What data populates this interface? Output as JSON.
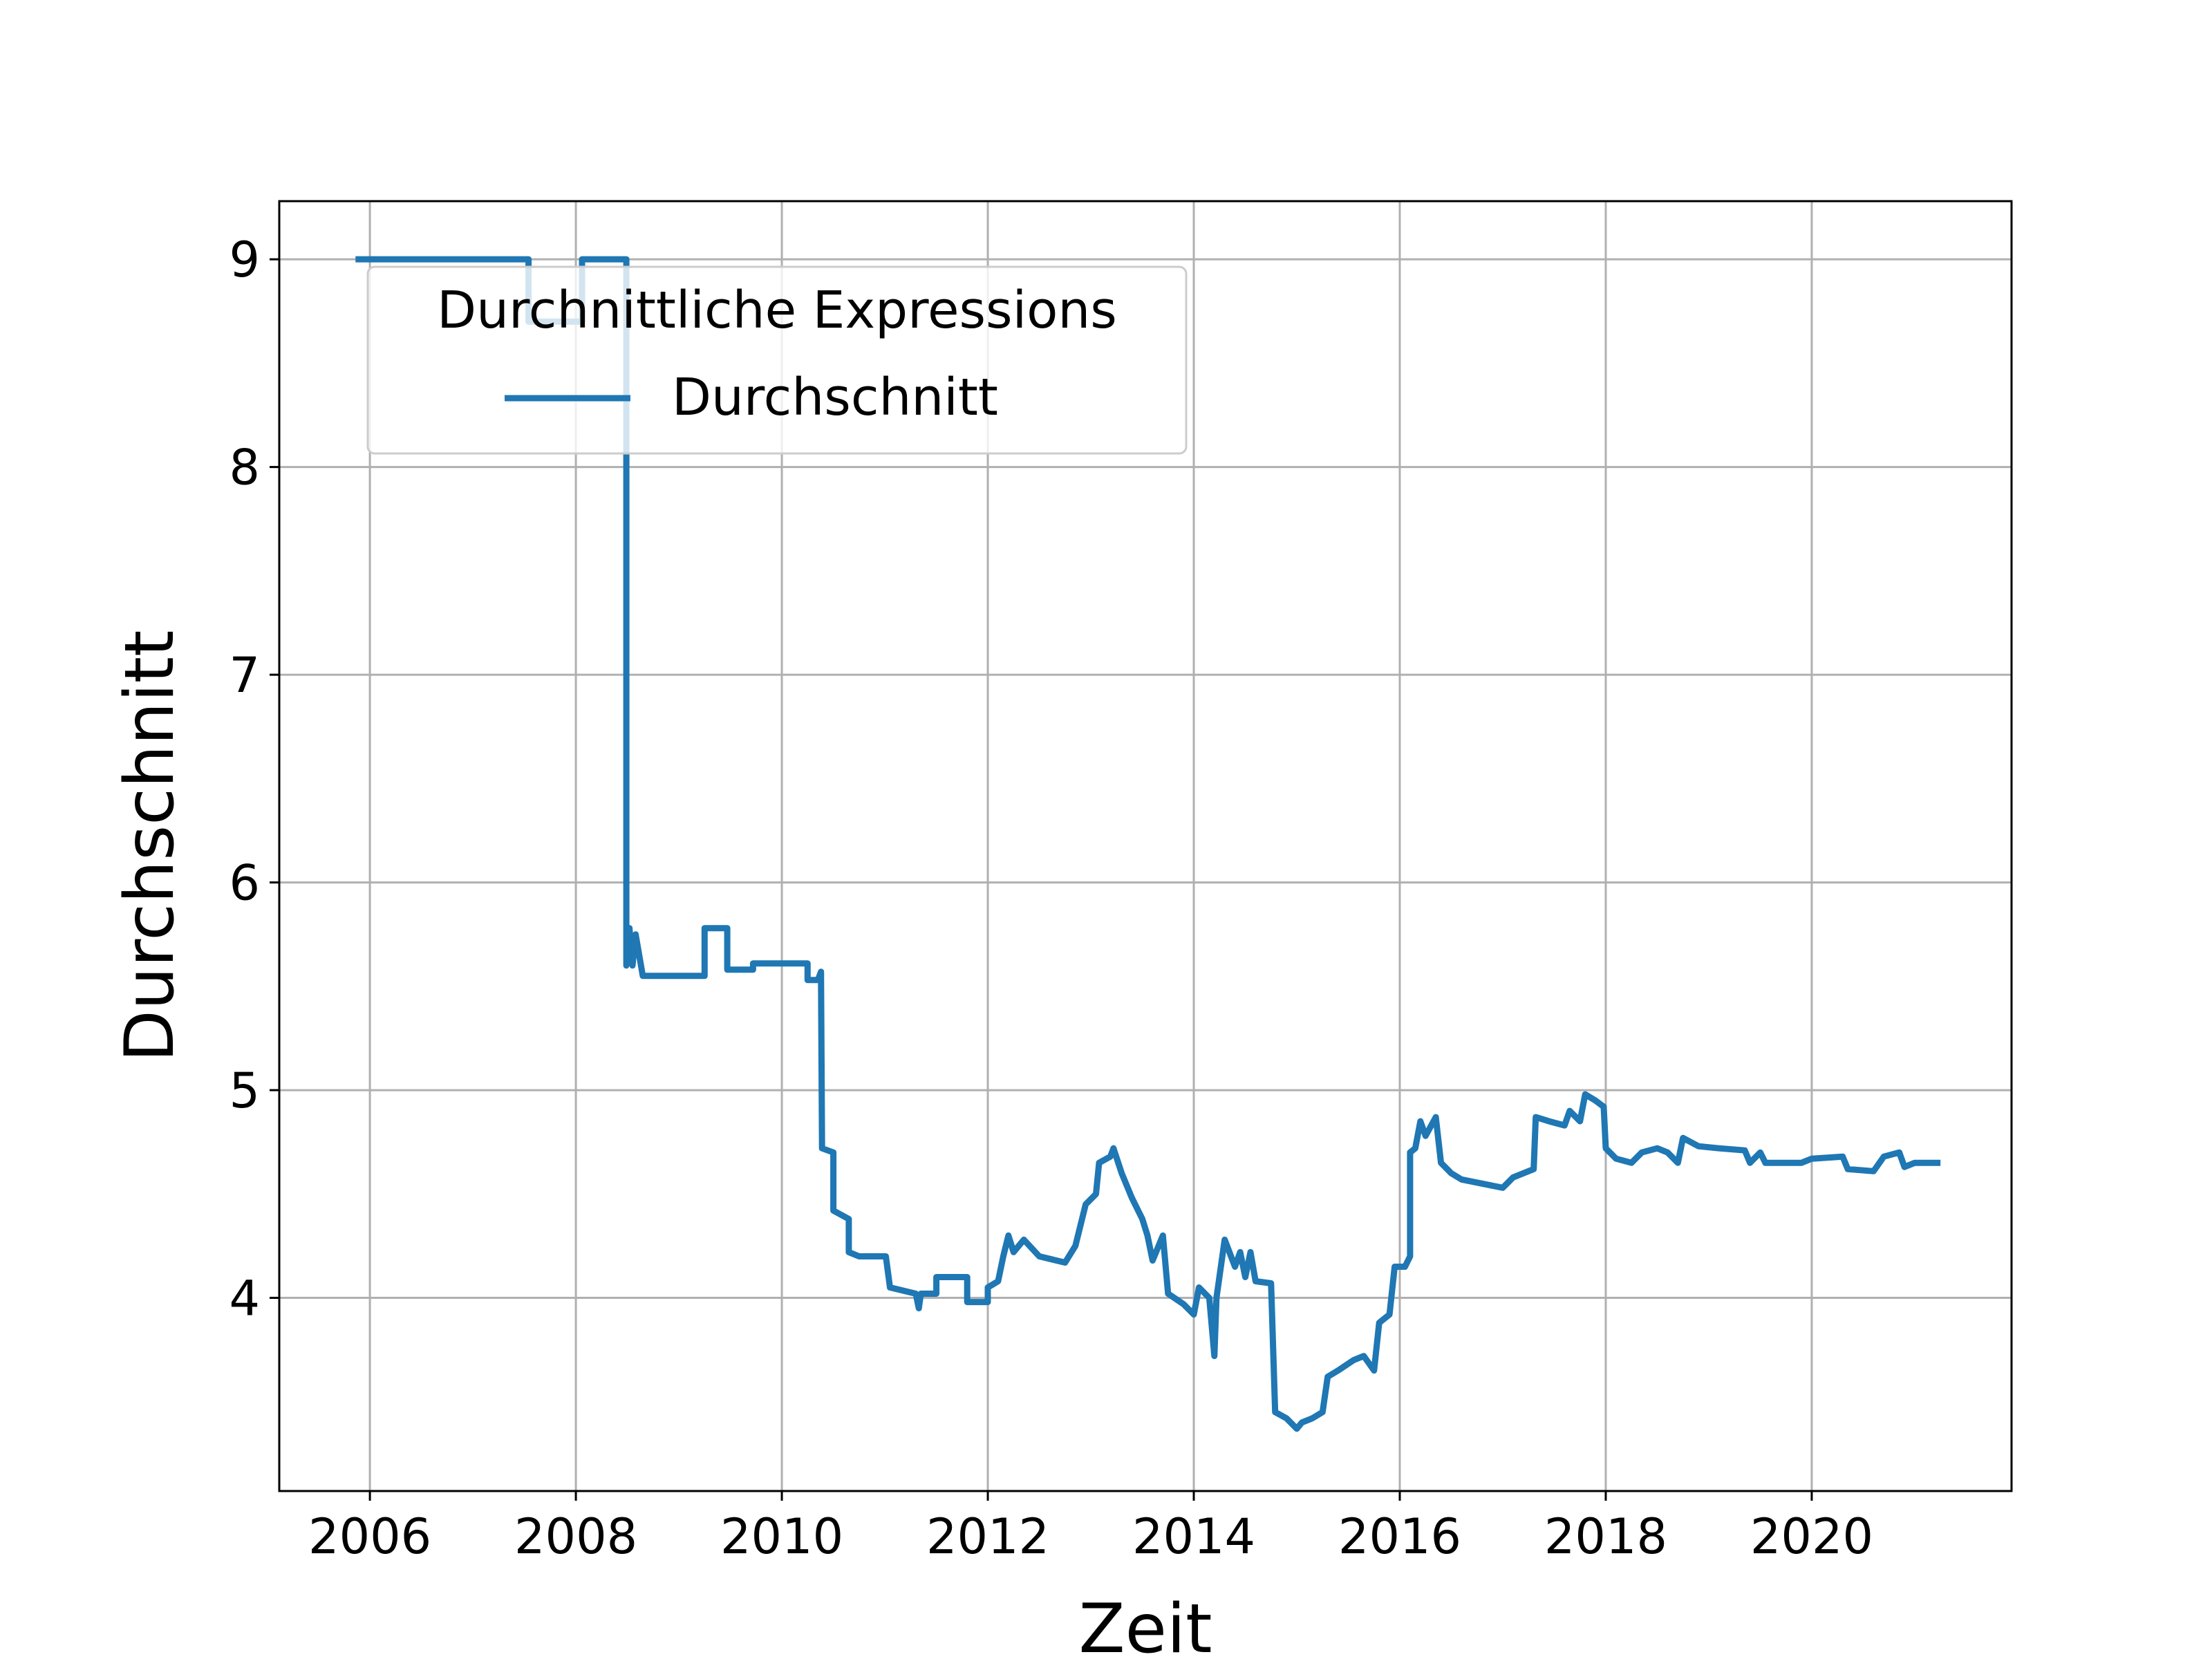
{
  "chart_data": {
    "type": "line",
    "x_label": "Zeit",
    "y_label": "Durchschnitt",
    "legend_title": "Durchnittliche Expressions",
    "legend_loc": "upper left",
    "grid": true,
    "xlim": [
      2005.12,
      2021.94
    ],
    "ylim": [
      3.07,
      9.28
    ],
    "xticks": [
      2006,
      2008,
      2010,
      2012,
      2014,
      2016,
      2018,
      2020
    ],
    "yticks": [
      4,
      5,
      6,
      7,
      8,
      9
    ],
    "x": [
      2005.86,
      2007.54,
      2007.54,
      2008.06,
      2008.06,
      2008.49,
      2008.49,
      2008.52,
      2008.55,
      2008.58,
      2008.65,
      2008.8,
      2009.25,
      2009.25,
      2009.47,
      2009.47,
      2009.72,
      2009.72,
      2010.25,
      2010.25,
      2010.35,
      2010.38,
      2010.39,
      2010.5,
      2010.5,
      2010.65,
      2010.65,
      2010.75,
      2011.01,
      2011.05,
      2011.3,
      2011.33,
      2011.35,
      2011.5,
      2011.5,
      2011.8,
      2011.8,
      2012.0,
      2012.0,
      2012.1,
      2012.15,
      2012.2,
      2012.25,
      2012.35,
      2012.5,
      2012.75,
      2012.85,
      2012.95,
      2013.05,
      2013.08,
      2013.19,
      2013.22,
      2013.3,
      2013.4,
      2013.5,
      2013.55,
      2013.6,
      2013.7,
      2013.75,
      2013.9,
      2014.0,
      2014.05,
      2014.15,
      2014.2,
      2014.22,
      2014.3,
      2014.4,
      2014.45,
      2014.5,
      2014.55,
      2014.6,
      2014.75,
      2014.79,
      2014.9,
      2015.0,
      2015.05,
      2015.15,
      2015.25,
      2015.3,
      2015.4,
      2015.55,
      2015.65,
      2015.75,
      2015.8,
      2015.9,
      2015.95,
      2016.05,
      2016.1,
      2016.1,
      2016.15,
      2016.2,
      2016.25,
      2016.35,
      2016.4,
      2016.5,
      2016.6,
      2016.8,
      2017.0,
      2017.1,
      2017.3,
      2017.32,
      2017.45,
      2017.6,
      2017.65,
      2017.75,
      2017.8,
      2017.9,
      2017.98,
      2018.0,
      2018.1,
      2018.25,
      2018.35,
      2018.5,
      2018.6,
      2018.7,
      2018.75,
      2018.9,
      2019.1,
      2019.35,
      2019.4,
      2019.5,
      2019.55,
      2019.9,
      2020.0,
      2020.3,
      2020.35,
      2020.6,
      2020.7,
      2020.85,
      2020.9,
      2021.0,
      2021.25
    ],
    "series": [
      {
        "name": "Durchschnitt",
        "color": "#1f77b4",
        "values": [
          9,
          9,
          8.7,
          8.7,
          9,
          9,
          5.6,
          5.78,
          5.6,
          5.75,
          5.55,
          5.55,
          5.55,
          5.78,
          5.78,
          5.58,
          5.58,
          5.61,
          5.61,
          5.53,
          5.53,
          5.57,
          4.72,
          4.7,
          4.42,
          4.38,
          4.22,
          4.2,
          4.2,
          4.05,
          4.02,
          3.95,
          4.02,
          4.02,
          4.1,
          4.1,
          3.98,
          3.98,
          4.05,
          4.08,
          4.2,
          4.3,
          4.22,
          4.28,
          4.2,
          4.17,
          4.25,
          4.45,
          4.5,
          4.65,
          4.68,
          4.72,
          4.6,
          4.48,
          4.38,
          4.3,
          4.18,
          4.3,
          4.02,
          3.97,
          3.92,
          4.05,
          4.0,
          3.72,
          4.0,
          4.28,
          4.15,
          4.22,
          4.1,
          4.22,
          4.08,
          4.07,
          3.45,
          3.42,
          3.37,
          3.4,
          3.42,
          3.45,
          3.62,
          3.65,
          3.7,
          3.72,
          3.65,
          3.88,
          3.92,
          4.15,
          4.15,
          4.2,
          4.7,
          4.72,
          4.85,
          4.78,
          4.87,
          4.65,
          4.6,
          4.57,
          4.55,
          4.53,
          4.58,
          4.62,
          4.87,
          4.85,
          4.83,
          4.9,
          4.85,
          4.98,
          4.95,
          4.92,
          4.72,
          4.67,
          4.65,
          4.7,
          4.72,
          4.7,
          4.65,
          4.77,
          4.73,
          4.72,
          4.71,
          4.65,
          4.7,
          4.65,
          4.65,
          4.67,
          4.68,
          4.62,
          4.61,
          4.68,
          4.7,
          4.63,
          4.65,
          4.65
        ]
      }
    ]
  }
}
